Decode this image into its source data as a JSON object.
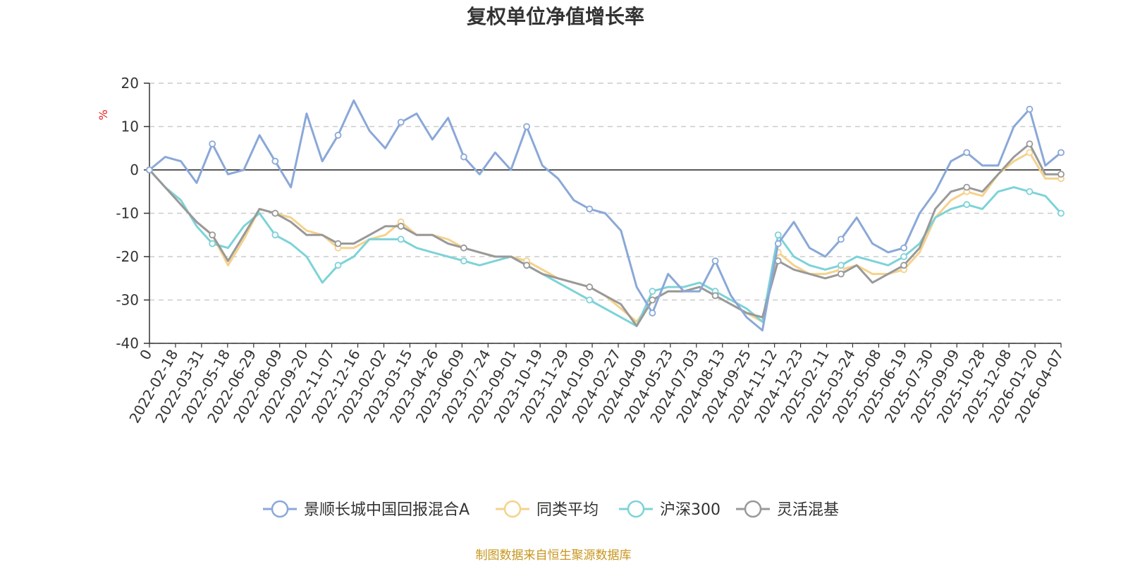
{
  "chart_data": {
    "type": "line",
    "title": "复权单位净值增长率",
    "ylabel": "%",
    "xlabel": "",
    "ylim": [
      -40,
      20
    ],
    "yticks": [
      20,
      10,
      0,
      -10,
      -20,
      -30,
      -40
    ],
    "grid": true,
    "legend_position": "bottom",
    "x_tick_labels": [
      "0",
      "2022-02-18",
      "2022-03-31",
      "2022-05-18",
      "2022-06-29",
      "2022-08-09",
      "2022-09-20",
      "2022-11-07",
      "2022-12-16",
      "2023-02-02",
      "2023-03-15",
      "2023-04-26",
      "2023-06-09",
      "2023-07-24",
      "2023-09-01",
      "2023-10-19",
      "2023-11-29",
      "2024-01-09",
      "2024-02-27",
      "2024-04-09",
      "2024-05-23",
      "2024-07-03",
      "2024-08-13",
      "2024-09-25",
      "2024-11-12",
      "2024-12-23",
      "2025-02-11",
      "2025-03-24",
      "2025-05-08",
      "2025-06-19",
      "2025-07-30",
      "2025-09-09",
      "2025-10-28",
      "2025-12-08",
      "2026-01-20",
      "2026-04-07"
    ],
    "series": [
      {
        "name": "景顺长城中国回报混合A",
        "color": "#8aa8d8",
        "values": [
          0,
          3,
          2,
          -3,
          6,
          -1,
          0,
          8,
          2,
          -4,
          13,
          2,
          8,
          16,
          9,
          5,
          11,
          13,
          7,
          12,
          3,
          -1,
          4,
          0,
          10,
          1,
          -2,
          -7,
          -9,
          -10,
          -14,
          -27,
          -33,
          -24,
          -28,
          -28,
          -21,
          -29,
          -34,
          -37,
          -17,
          -12,
          -18,
          -20,
          -16,
          -11,
          -17,
          -19,
          -18,
          -10,
          -5,
          2,
          4,
          1,
          1,
          10,
          14,
          1,
          4
        ]
      },
      {
        "name": "同类平均",
        "color": "#f5d28c",
        "values": [
          0,
          -4,
          -8,
          -12,
          -15,
          -22,
          -16,
          -9,
          -10,
          -11,
          -14,
          -15,
          -18,
          -18,
          -16,
          -15,
          -12,
          -15,
          -15,
          -16,
          -18,
          -19,
          -20,
          -20,
          -21,
          -23,
          -25,
          -26,
          -27,
          -29,
          -32,
          -35,
          -30,
          -28,
          -28,
          -27,
          -29,
          -31,
          -33,
          -35,
          -19,
          -22,
          -24,
          -24,
          -23,
          -22,
          -24,
          -24,
          -23,
          -19,
          -11,
          -7,
          -5,
          -6,
          -1,
          2,
          4,
          -2,
          -2
        ]
      },
      {
        "name": "沪深300",
        "color": "#7dd3d8",
        "values": [
          0,
          -4,
          -7,
          -13,
          -17,
          -18,
          -13,
          -10,
          -15,
          -17,
          -20,
          -26,
          -22,
          -20,
          -16,
          -16,
          -16,
          -18,
          -19,
          -20,
          -21,
          -22,
          -21,
          -20,
          -22,
          -24,
          -26,
          -28,
          -30,
          -32,
          -34,
          -36,
          -28,
          -27,
          -27,
          -26,
          -28,
          -30,
          -32,
          -35,
          -15,
          -20,
          -22,
          -23,
          -22,
          -20,
          -21,
          -22,
          -20,
          -17,
          -11,
          -9,
          -8,
          -9,
          -5,
          -4,
          -5,
          -6,
          -10
        ]
      },
      {
        "name": "灵活混基",
        "color": "#999999",
        "values": [
          0,
          -4,
          -8,
          -12,
          -15,
          -21,
          -15,
          -9,
          -10,
          -12,
          -15,
          -15,
          -17,
          -17,
          -15,
          -13,
          -13,
          -15,
          -15,
          -17,
          -18,
          -19,
          -20,
          -20,
          -22,
          -24,
          -25,
          -26,
          -27,
          -29,
          -31,
          -36,
          -30,
          -28,
          -28,
          -27,
          -29,
          -31,
          -33,
          -34,
          -21,
          -23,
          -24,
          -25,
          -24,
          -22,
          -26,
          -24,
          -22,
          -18,
          -9,
          -5,
          -4,
          -5,
          -1,
          3,
          6,
          -1,
          -1
        ]
      }
    ]
  },
  "source_note": "制图数据来自恒生聚源数据库"
}
